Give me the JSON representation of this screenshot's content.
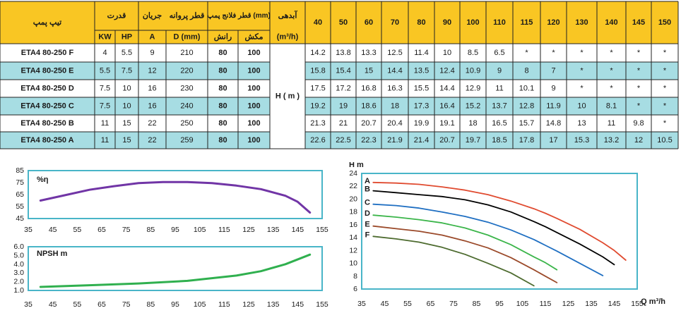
{
  "table": {
    "h_model": "تیپ پمپ",
    "h_power": "قدرت",
    "h_current": "جریان",
    "h_impeller_dia": "قطر پروانه",
    "h_flange": "قطر فلانج پمپ (mm)",
    "h_flow": "آبدهی",
    "u_kw": "KW",
    "u_hp": "HP",
    "u_a": "A",
    "u_d": "D (mm)",
    "u_discharge": "رانش",
    "u_suction": "مکش",
    "u_flow": "(m³/h)",
    "head_label": "H ( m )",
    "flows": [
      "40",
      "50",
      "60",
      "70",
      "80",
      "90",
      "100",
      "110",
      "115",
      "120",
      "130",
      "140",
      "145",
      "150"
    ],
    "rows": [
      {
        "model": "ETA4 80-250 F",
        "kw": "4",
        "hp": "5.5",
        "a": "9",
        "d": "210",
        "dis": "80",
        "suc": "100",
        "h": [
          "14.2",
          "13.8",
          "13.3",
          "12.5",
          "11.4",
          "10",
          "8.5",
          "6.5",
          "*",
          "*",
          "*",
          "*",
          "*",
          "*"
        ]
      },
      {
        "model": "ETA4 80-250 E",
        "kw": "5.5",
        "hp": "7.5",
        "a": "12",
        "d": "220",
        "dis": "80",
        "suc": "100",
        "h": [
          "15.8",
          "15.4",
          "15",
          "14.4",
          "13.5",
          "12.4",
          "10.9",
          "9",
          "8",
          "7",
          "*",
          "*",
          "*",
          "*"
        ]
      },
      {
        "model": "ETA4 80-250 D",
        "kw": "7.5",
        "hp": "10",
        "a": "16",
        "d": "230",
        "dis": "80",
        "suc": "100",
        "h": [
          "17.5",
          "17.2",
          "16.8",
          "16.3",
          "15.5",
          "14.4",
          "12.9",
          "11",
          "10.1",
          "9",
          "*",
          "*",
          "*",
          "*"
        ]
      },
      {
        "model": "ETA4 80-250 C",
        "kw": "7.5",
        "hp": "10",
        "a": "16",
        "d": "240",
        "dis": "80",
        "suc": "100",
        "h": [
          "19.2",
          "19",
          "18.6",
          "18",
          "17.3",
          "16.4",
          "15.2",
          "13.7",
          "12.8",
          "11.9",
          "10",
          "8.1",
          "*",
          "*"
        ]
      },
      {
        "model": "ETA4 80-250 B",
        "kw": "11",
        "hp": "15",
        "a": "22",
        "d": "250",
        "dis": "80",
        "suc": "100",
        "h": [
          "21.3",
          "21",
          "20.7",
          "20.4",
          "19.9",
          "19.1",
          "18",
          "16.5",
          "15.7",
          "14.8",
          "13",
          "11",
          "9.8",
          "*"
        ]
      },
      {
        "model": "ETA4 80-250 A",
        "kw": "11",
        "hp": "15",
        "a": "22",
        "d": "259",
        "dis": "80",
        "suc": "100",
        "h": [
          "22.6",
          "22.5",
          "22.3",
          "21.9",
          "21.4",
          "20.7",
          "19.7",
          "18.5",
          "17.8",
          "17",
          "15.3",
          "13.2",
          "12",
          "10.5"
        ]
      }
    ]
  },
  "colors": {
    "header_bg": "#f9c623",
    "row_alt_bg": "#a7dde3",
    "chart_border": "#49b5c8",
    "efficiency_line": "#7135a6",
    "npsh_line": "#30b04f",
    "curve_A": "#e04b30",
    "curve_B": "#000000",
    "curve_C": "#1f6fc2",
    "curve_D": "#3bb54a",
    "curve_E": "#9b4a2a",
    "curve_F": "#4d6b2f"
  },
  "chart_data": [
    {
      "type": "line",
      "title": "",
      "ylabel": "%η",
      "xlabel": "",
      "xlim": [
        35,
        155
      ],
      "ylim": [
        45,
        85
      ],
      "xticks": [
        "35",
        "45",
        "55",
        "65",
        "75",
        "85",
        "95",
        "105",
        "115",
        "125",
        "135",
        "145",
        "155"
      ],
      "yticks": [
        "85",
        "75",
        "65",
        "55",
        "45"
      ],
      "series": [
        {
          "x": [
            40,
            50,
            60,
            70,
            80,
            90,
            100,
            110,
            120,
            130,
            140,
            145,
            150
          ],
          "y": [
            60,
            64.5,
            69,
            72,
            74.5,
            75.5,
            75.5,
            74.5,
            72.5,
            69.5,
            64,
            59,
            50
          ]
        }
      ]
    },
    {
      "type": "line",
      "title": "",
      "ylabel": "NPSH m",
      "xlabel": "",
      "xlim": [
        35,
        155
      ],
      "ylim": [
        1,
        6
      ],
      "xticks": [
        "35",
        "45",
        "55",
        "65",
        "75",
        "85",
        "95",
        "105",
        "115",
        "125",
        "135",
        "145",
        "155"
      ],
      "yticks": [
        "6.0",
        "5.0",
        "4.0",
        "3.0",
        "2.0",
        "1.0"
      ],
      "series": [
        {
          "x": [
            40,
            60,
            80,
            100,
            110,
            120,
            130,
            140,
            150
          ],
          "y": [
            1.4,
            1.6,
            1.8,
            2.1,
            2.4,
            2.7,
            3.2,
            4.0,
            5.1
          ]
        }
      ]
    },
    {
      "type": "line",
      "title": "",
      "ylabel": "H m",
      "xlabel": "Q m³/h",
      "xlim": [
        35,
        155
      ],
      "ylim": [
        6,
        24
      ],
      "xticks": [
        "35",
        "45",
        "55",
        "65",
        "75",
        "85",
        "95",
        "105",
        "115",
        "125",
        "135",
        "145",
        "155"
      ],
      "yticks": [
        "24",
        "22",
        "20",
        "18",
        "16",
        "14",
        "12",
        "10",
        "8",
        "6"
      ],
      "series": [
        {
          "name": "A",
          "x": [
            40,
            50,
            60,
            70,
            80,
            90,
            100,
            110,
            115,
            120,
            130,
            140,
            145,
            150
          ],
          "y": [
            22.6,
            22.5,
            22.3,
            21.9,
            21.4,
            20.7,
            19.7,
            18.5,
            17.8,
            17,
            15.3,
            13.2,
            12,
            10.5
          ]
        },
        {
          "name": "B",
          "x": [
            40,
            50,
            60,
            70,
            80,
            90,
            100,
            110,
            115,
            120,
            130,
            140,
            145
          ],
          "y": [
            21.3,
            21,
            20.7,
            20.4,
            19.9,
            19.1,
            18,
            16.5,
            15.7,
            14.8,
            13,
            11,
            9.8
          ]
        },
        {
          "name": "C",
          "x": [
            40,
            50,
            60,
            70,
            80,
            90,
            100,
            110,
            115,
            120,
            130,
            140
          ],
          "y": [
            19.2,
            19,
            18.6,
            18,
            17.3,
            16.4,
            15.2,
            13.7,
            12.8,
            11.9,
            10,
            8.1
          ]
        },
        {
          "name": "D",
          "x": [
            40,
            50,
            60,
            70,
            80,
            90,
            100,
            110,
            115,
            120
          ],
          "y": [
            17.5,
            17.2,
            16.8,
            16.3,
            15.5,
            14.4,
            12.9,
            11,
            10.1,
            9
          ]
        },
        {
          "name": "E",
          "x": [
            40,
            50,
            60,
            70,
            80,
            90,
            100,
            110,
            115,
            120
          ],
          "y": [
            15.8,
            15.4,
            15,
            14.4,
            13.5,
            12.4,
            10.9,
            9,
            8,
            7
          ]
        },
        {
          "name": "F",
          "x": [
            40,
            50,
            60,
            70,
            80,
            90,
            100,
            110
          ],
          "y": [
            14.2,
            13.8,
            13.3,
            12.5,
            11.4,
            10,
            8.5,
            6.5
          ]
        }
      ]
    }
  ]
}
